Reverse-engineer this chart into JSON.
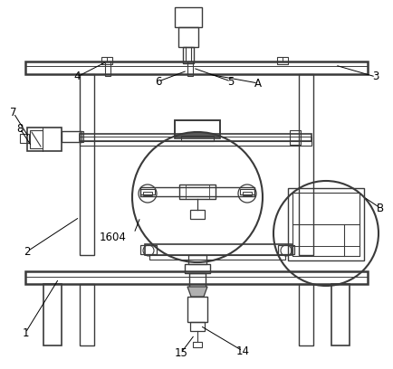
{
  "background_color": "#ffffff",
  "line_color": "#3a3a3a",
  "label_color": "#000000",
  "fig_w": 4.34,
  "fig_h": 4.08,
  "dpi": 100
}
